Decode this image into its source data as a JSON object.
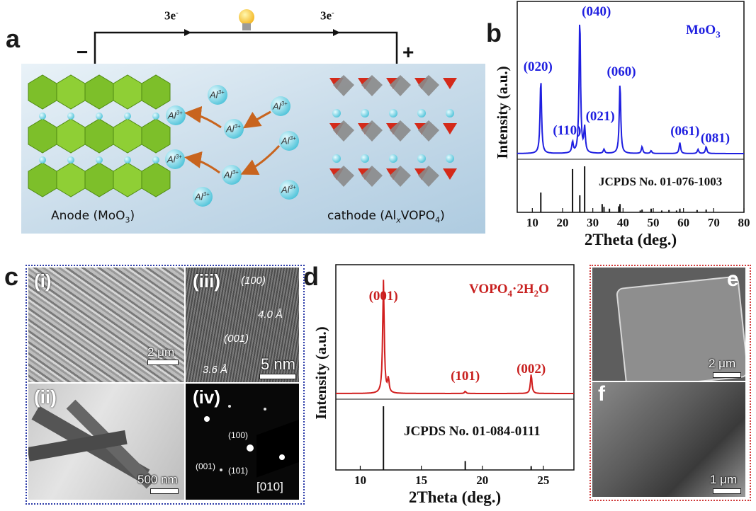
{
  "panel_labels": {
    "a": "a",
    "b": "b",
    "c": "c",
    "d": "d",
    "e": "e",
    "f": "f"
  },
  "panel_a": {
    "electron_left": "3e",
    "electron_right": "3e",
    "electron_sup": "-",
    "minus": "−",
    "plus": "+",
    "ion_label": "Al",
    "ion_sup": "3+",
    "anode_label": "Anode (MoO",
    "anode_sub": "3",
    "anode_end": ")",
    "cathode_label": "cathode (Al",
    "cathode_sub1": "x",
    "cathode_mid": "VOPO",
    "cathode_sub2": "4",
    "cathode_end": ")",
    "colors": {
      "anode": "#7dbf2a",
      "ion": "#6fd3e6",
      "arrow": "#c8641e",
      "cathode_red": "#d42a1a",
      "cathode_grey": "#8a8a8a"
    }
  },
  "panel_c": {
    "sub_i": "(i)",
    "sub_ii": "(ii)",
    "sub_iii": "(iii)",
    "sub_iv": "(iv)",
    "scale_i": "2 μm",
    "scale_ii": "500 nm",
    "scale_iii": "5 nm",
    "hkl_100": "(100)",
    "d_100": "4.0 Å",
    "hkl_001": "(001)",
    "d_001": "3.6 Å",
    "saed_100": "(100)",
    "saed_001": "(001)",
    "saed_101": "(101)",
    "zone_axis": "[010]",
    "border_color": "#2b3aa8"
  },
  "panel_ef": {
    "scale_e": "2 μm",
    "scale_f": "1 μm",
    "border_color": "#d13a3a"
  },
  "chart_data": [
    {
      "panel": "b",
      "type": "line",
      "title": "MoO3",
      "xlabel": "2Theta (deg.)",
      "ylabel": "Intensity (a.u.)",
      "xlim": [
        5,
        80
      ],
      "xticks": [
        10,
        20,
        30,
        40,
        50,
        60,
        70,
        80
      ],
      "series": [
        {
          "color": "#1f1fe0",
          "x": [
            12.8,
            23.3,
            25.7,
            27.3,
            33.7,
            39.0,
            46.3,
            49.3,
            58.8,
            64.8,
            67.5
          ],
          "rel_intensity": [
            0.55,
            0.08,
            1.0,
            0.18,
            0.03,
            0.52,
            0.05,
            0.02,
            0.08,
            0.03,
            0.05
          ]
        }
      ],
      "peak_labels": [
        {
          "text": "(020)",
          "x": 12.8
        },
        {
          "text": "(110)",
          "x": 23.3
        },
        {
          "text": "(040)",
          "x": 25.7
        },
        {
          "text": "(021)",
          "x": 27.3
        },
        {
          "text": "(060)",
          "x": 39.0
        },
        {
          "text": "(061)",
          "x": 58.8
        },
        {
          "text": "(081)",
          "x": 67.5
        }
      ],
      "reference_label": "JCPDS No. 01-076-1003",
      "reference_sticks": {
        "x": [
          12.8,
          23.3,
          25.7,
          27.3,
          33.1,
          33.7,
          35.5,
          38.6,
          39.0,
          45.7,
          46.3,
          49.3,
          52.8,
          55.2,
          57.7,
          58.8,
          64.5,
          67.5
        ],
        "rel_intensity": [
          0.43,
          0.94,
          0.37,
          1.0,
          0.18,
          0.12,
          0.08,
          0.13,
          0.18,
          0.04,
          0.06,
          0.08,
          0.04,
          0.05,
          0.04,
          0.08,
          0.05,
          0.06
        ]
      }
    },
    {
      "panel": "d",
      "type": "line",
      "title": "VOPO4·2H2O",
      "xlabel": "2Theta (deg.)",
      "ylabel": "Intensity (a.u.)",
      "xlim": [
        8,
        27.5
      ],
      "xticks": [
        10,
        15,
        20,
        25
      ],
      "series": [
        {
          "color": "#d11f1f",
          "x": [
            11.9,
            12.3,
            18.6,
            24.0
          ],
          "rel_intensity": [
            1.0,
            0.12,
            0.02,
            0.17
          ]
        }
      ],
      "peak_labels": [
        {
          "text": "(001)",
          "x": 11.9
        },
        {
          "text": "(101)",
          "x": 18.6
        },
        {
          "text": "(002)",
          "x": 24.0
        }
      ],
      "reference_label": "JCPDS No. 01-084-0111",
      "reference_sticks": {
        "x": [
          11.9,
          18.6,
          24.0
        ],
        "rel_intensity": [
          1.0,
          0.14,
          0.06
        ]
      }
    }
  ]
}
